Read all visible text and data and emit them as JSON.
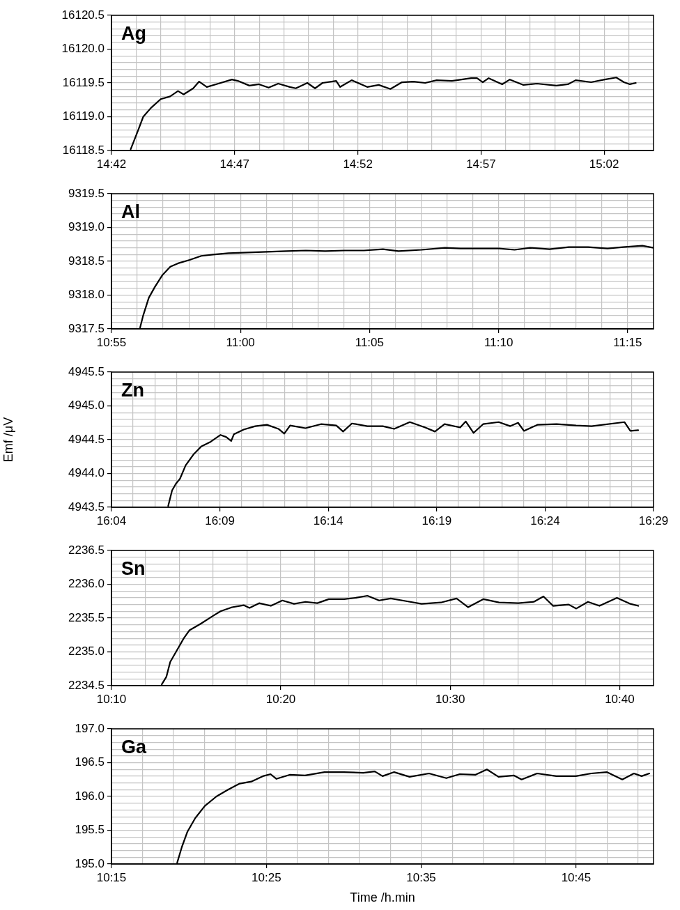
{
  "chart_data": [
    {
      "type": "line",
      "title": "Ag",
      "grid": true,
      "x": [
        14.713,
        14.7175,
        14.7215,
        14.7267,
        14.7333,
        14.7397,
        14.745,
        14.7488,
        14.7553,
        14.7593,
        14.7645,
        14.7723,
        14.7815,
        14.7855,
        14.7933,
        14.7998,
        14.8063,
        14.8128,
        14.8207,
        14.8247,
        14.8325,
        14.8377,
        14.8428,
        14.852,
        14.8547,
        14.8625,
        14.873,
        14.8808,
        14.8887,
        14.8965,
        14.9042,
        14.9122,
        14.92,
        14.9303,
        14.9433,
        14.9473,
        14.9512,
        14.9552,
        14.9643,
        14.9695,
        14.9787,
        14.9878,
        15.001,
        15.0088,
        15.014,
        15.0245,
        15.0337,
        15.0415,
        15.0467,
        15.0507,
        15.0547
      ],
      "series": [
        {
          "color": "#000000",
          "values": [
            16118.52,
            16118.77,
            16119.0,
            16119.13,
            16119.26,
            16119.3,
            16119.38,
            16119.33,
            16119.42,
            16119.52,
            16119.44,
            16119.49,
            16119.55,
            16119.53,
            16119.46,
            16119.48,
            16119.43,
            16119.49,
            16119.44,
            16119.42,
            16119.5,
            16119.42,
            16119.5,
            16119.53,
            16119.44,
            16119.54,
            16119.44,
            16119.47,
            16119.41,
            16119.51,
            16119.52,
            16119.5,
            16119.54,
            16119.53,
            16119.57,
            16119.57,
            16119.51,
            16119.57,
            16119.48,
            16119.55,
            16119.47,
            16119.49,
            16119.46,
            16119.48,
            16119.54,
            16119.51,
            16119.55,
            16119.58,
            16119.51,
            16119.48,
            16119.5
          ]
        }
      ],
      "xlim": [
        14.7,
        15.0667
      ],
      "xticks": [
        {
          "value": 14.7,
          "label": "14:42"
        },
        {
          "value": 14.7167,
          "label": null
        },
        {
          "value": 14.7333,
          "label": null
        },
        {
          "value": 14.75,
          "label": null
        },
        {
          "value": 14.7667,
          "label": null
        },
        {
          "value": 14.7833,
          "label": "14:47"
        },
        {
          "value": 14.8,
          "label": null
        },
        {
          "value": 14.8167,
          "label": null
        },
        {
          "value": 14.8333,
          "label": null
        },
        {
          "value": 14.85,
          "label": null
        },
        {
          "value": 14.8667,
          "label": "14:52"
        },
        {
          "value": 14.8833,
          "label": null
        },
        {
          "value": 14.9,
          "label": null
        },
        {
          "value": 14.9167,
          "label": null
        },
        {
          "value": 14.9333,
          "label": null
        },
        {
          "value": 14.95,
          "label": "14:57"
        },
        {
          "value": 14.9667,
          "label": null
        },
        {
          "value": 14.9833,
          "label": null
        },
        {
          "value": 15,
          "label": null
        },
        {
          "value": 15.0167,
          "label": null
        },
        {
          "value": 15.0333,
          "label": "15:02"
        },
        {
          "value": 15.05,
          "label": null
        }
      ],
      "ylim": [
        16118.5,
        16120.5
      ],
      "yticks": [
        16118.5,
        {
          "value": 16118.6,
          "label": null
        },
        {
          "value": 16118.7,
          "label": null
        },
        {
          "value": 16118.8,
          "label": null
        },
        {
          "value": 16118.9,
          "label": null
        },
        {
          "value": 16119,
          "label": "16119.0"
        },
        {
          "value": 16119.1,
          "label": null
        },
        {
          "value": 16119.2,
          "label": null
        },
        {
          "value": 16119.3,
          "label": null
        },
        {
          "value": 16119.4,
          "label": null
        },
        16119.5,
        {
          "value": 16119.6,
          "label": null
        },
        {
          "value": 16119.7,
          "label": null
        },
        {
          "value": 16119.8,
          "label": null
        },
        {
          "value": 16119.9,
          "label": null
        },
        {
          "value": 16120,
          "label": "16120.0"
        },
        {
          "value": 16120.1,
          "label": null
        },
        {
          "value": 16120.2,
          "label": null
        },
        {
          "value": 16120.3,
          "label": null
        },
        {
          "value": 16120.4,
          "label": null
        },
        16120.5
      ]
    },
    {
      "type": "line",
      "title": "Al",
      "grid": true,
      "x": [
        10.9352,
        10.9372,
        10.9408,
        10.9447,
        10.9497,
        10.9547,
        10.9597,
        10.9672,
        10.9747,
        10.9822,
        10.9922,
        11.0047,
        11.0172,
        11.0297,
        11.0422,
        11.0547,
        11.0672,
        11.0797,
        11.092,
        11.102,
        11.117,
        11.132,
        11.142,
        11.1545,
        11.167,
        11.177,
        11.187,
        11.1995,
        11.212,
        11.2245,
        11.237,
        11.247,
        11.2595,
        11.2667
      ],
      "series": [
        {
          "color": "#000000",
          "values": [
            9317.52,
            9317.7,
            9317.96,
            9318.12,
            9318.3,
            9318.42,
            9318.47,
            9318.52,
            9318.58,
            9318.6,
            9318.62,
            9318.63,
            9318.64,
            9318.65,
            9318.66,
            9318.65,
            9318.66,
            9318.66,
            9318.68,
            9318.65,
            9318.67,
            9318.7,
            9318.69,
            9318.69,
            9318.69,
            9318.67,
            9318.7,
            9318.68,
            9318.71,
            9318.71,
            9318.69,
            9318.71,
            9318.73,
            9318.7
          ]
        }
      ],
      "xlim": [
        10.9167,
        11.2667
      ],
      "xticks": [
        {
          "value": 10.9167,
          "label": "10:55"
        },
        {
          "value": 10.9333,
          "label": null
        },
        {
          "value": 10.95,
          "label": null
        },
        {
          "value": 10.9667,
          "label": null
        },
        {
          "value": 10.9833,
          "label": null
        },
        {
          "value": 11,
          "label": "11:00"
        },
        {
          "value": 11.0167,
          "label": null
        },
        {
          "value": 11.0333,
          "label": null
        },
        {
          "value": 11.05,
          "label": null
        },
        {
          "value": 11.0667,
          "label": null
        },
        {
          "value": 11.0833,
          "label": "11:05"
        },
        {
          "value": 11.1,
          "label": null
        },
        {
          "value": 11.1167,
          "label": null
        },
        {
          "value": 11.1333,
          "label": null
        },
        {
          "value": 11.15,
          "label": null
        },
        {
          "value": 11.1667,
          "label": "11:10"
        },
        {
          "value": 11.1833,
          "label": null
        },
        {
          "value": 11.2,
          "label": null
        },
        {
          "value": 11.2167,
          "label": null
        },
        {
          "value": 11.2333,
          "label": null
        },
        {
          "value": 11.25,
          "label": "11:15"
        }
      ],
      "ylim": [
        9317.5,
        9319.5
      ],
      "yticks": [
        9317.5,
        {
          "value": 9317.6,
          "label": null
        },
        {
          "value": 9317.7,
          "label": null
        },
        {
          "value": 9317.8,
          "label": null
        },
        {
          "value": 9317.9,
          "label": null
        },
        {
          "value": 9318,
          "label": "9318.0"
        },
        {
          "value": 9318.1,
          "label": null
        },
        {
          "value": 9318.2,
          "label": null
        },
        {
          "value": 9318.3,
          "label": null
        },
        {
          "value": 9318.4,
          "label": null
        },
        9318.5,
        {
          "value": 9318.6,
          "label": null
        },
        {
          "value": 9318.7,
          "label": null
        },
        {
          "value": 9318.8,
          "label": null
        },
        {
          "value": 9318.9,
          "label": null
        },
        {
          "value": 9319,
          "label": "9319.0"
        },
        {
          "value": 9319.1,
          "label": null
        },
        {
          "value": 9319.2,
          "label": null
        },
        {
          "value": 9319.3,
          "label": null
        },
        {
          "value": 9319.4,
          "label": null
        },
        9319.5
      ]
    },
    {
      "type": "line",
      "title": "Zn",
      "ylabel": "Emf /μV",
      "grid": true,
      "x": [
        16.1103,
        16.1133,
        16.1163,
        16.1193,
        16.1237,
        16.1297,
        16.1357,
        16.143,
        16.1505,
        16.1548,
        16.1587,
        16.1608,
        16.1683,
        16.1772,
        16.1862,
        16.195,
        16.1995,
        16.204,
        16.2158,
        16.2277,
        16.2395,
        16.2447,
        16.2515,
        16.2633,
        16.2752,
        16.284,
        16.296,
        16.3078,
        16.3153,
        16.3227,
        16.3347,
        16.339,
        16.345,
        16.3523,
        16.3643,
        16.3732,
        16.3792,
        16.3837,
        16.394,
        16.4088,
        16.4238,
        16.4357,
        16.461,
        16.4655,
        16.4715
      ],
      "series": [
        {
          "color": "#000000",
          "values": [
            4943.52,
            4943.75,
            4943.85,
            4943.92,
            4944.12,
            4944.28,
            4944.4,
            4944.47,
            4944.57,
            4944.54,
            4944.48,
            4944.58,
            4944.65,
            4944.7,
            4944.72,
            4944.66,
            4944.59,
            4944.71,
            4944.67,
            4944.73,
            4944.71,
            4944.62,
            4944.74,
            4944.7,
            4944.7,
            4944.66,
            4944.76,
            4944.68,
            4944.62,
            4944.73,
            4944.68,
            4944.77,
            4944.6,
            4944.73,
            4944.76,
            4944.7,
            4944.75,
            4944.63,
            4944.72,
            4944.73,
            4944.71,
            4944.7,
            4944.76,
            4944.63,
            4944.64
          ]
        }
      ],
      "xlim": [
        16.0667,
        16.4833
      ],
      "xticks": [
        {
          "value": 16.0667,
          "label": "16:04"
        },
        {
          "value": 16.0833,
          "label": null
        },
        {
          "value": 16.1,
          "label": null
        },
        {
          "value": 16.1167,
          "label": null
        },
        {
          "value": 16.1333,
          "label": null
        },
        {
          "value": 16.15,
          "label": "16:09"
        },
        {
          "value": 16.1667,
          "label": null
        },
        {
          "value": 16.1833,
          "label": null
        },
        {
          "value": 16.2,
          "label": null
        },
        {
          "value": 16.2167,
          "label": null
        },
        {
          "value": 16.2333,
          "label": "16:14"
        },
        {
          "value": 16.25,
          "label": null
        },
        {
          "value": 16.2667,
          "label": null
        },
        {
          "value": 16.2833,
          "label": null
        },
        {
          "value": 16.3,
          "label": null
        },
        {
          "value": 16.3167,
          "label": "16:19"
        },
        {
          "value": 16.3333,
          "label": null
        },
        {
          "value": 16.35,
          "label": null
        },
        {
          "value": 16.3667,
          "label": null
        },
        {
          "value": 16.3833,
          "label": null
        },
        {
          "value": 16.4,
          "label": "16:24"
        },
        {
          "value": 16.4167,
          "label": null
        },
        {
          "value": 16.4333,
          "label": null
        },
        {
          "value": 16.45,
          "label": null
        },
        {
          "value": 16.4667,
          "label": null
        },
        {
          "value": 16.4833,
          "label": "16:29"
        }
      ],
      "ylim": [
        4943.5,
        4945.5
      ],
      "yticks": [
        4943.5,
        {
          "value": 4943.6,
          "label": null
        },
        {
          "value": 4943.7,
          "label": null
        },
        {
          "value": 4943.8,
          "label": null
        },
        {
          "value": 4943.9,
          "label": null
        },
        {
          "value": 4944,
          "label": "4944.0"
        },
        {
          "value": 4944.1,
          "label": null
        },
        {
          "value": 4944.2,
          "label": null
        },
        {
          "value": 4944.3,
          "label": null
        },
        {
          "value": 4944.4,
          "label": null
        },
        4944.5,
        {
          "value": 4944.6,
          "label": null
        },
        {
          "value": 4944.7,
          "label": null
        },
        {
          "value": 4944.8,
          "label": null
        },
        {
          "value": 4944.9,
          "label": null
        },
        {
          "value": 4945,
          "label": "4945.0"
        },
        {
          "value": 4945.1,
          "label": null
        },
        {
          "value": 4945.2,
          "label": null
        },
        {
          "value": 4945.3,
          "label": null
        },
        {
          "value": 4945.4,
          "label": null
        },
        4945.5
      ]
    },
    {
      "type": "line",
      "title": "Sn",
      "grid": true,
      "x": [
        10.2162,
        10.2207,
        10.2245,
        10.2302,
        10.2378,
        10.2435,
        10.255,
        10.2663,
        10.274,
        10.2853,
        10.2968,
        10.3025,
        10.312,
        10.3235,
        10.3348,
        10.3463,
        10.3577,
        10.3692,
        10.3805,
        10.3957,
        10.4072,
        10.4185,
        10.43,
        10.4415,
        10.4567,
        10.4718,
        10.4908,
        10.5062,
        10.5175,
        10.5327,
        10.548,
        10.567,
        10.5822,
        10.5917,
        10.6012,
        10.6165,
        10.624,
        10.6355,
        10.6468,
        10.664,
        10.6773,
        10.685
      ],
      "series": [
        {
          "color": "#000000",
          "values": [
            2234.52,
            2234.63,
            2234.85,
            2235.0,
            2235.2,
            2235.32,
            2235.42,
            2235.53,
            2235.6,
            2235.66,
            2235.69,
            2235.65,
            2235.72,
            2235.68,
            2235.76,
            2235.71,
            2235.74,
            2235.72,
            2235.78,
            2235.78,
            2235.8,
            2235.83,
            2235.76,
            2235.79,
            2235.75,
            2235.71,
            2235.73,
            2235.79,
            2235.66,
            2235.78,
            2235.73,
            2235.72,
            2235.74,
            2235.82,
            2235.68,
            2235.7,
            2235.64,
            2235.74,
            2235.68,
            2235.8,
            2235.71,
            2235.68
          ]
        }
      ],
      "xlim": [
        10.1667,
        10.7
      ],
      "xticks": [
        {
          "value": 10.1667,
          "label": "10:10"
        },
        {
          "value": 10.2,
          "label": null
        },
        {
          "value": 10.2333,
          "label": null
        },
        {
          "value": 10.2667,
          "label": null
        },
        {
          "value": 10.3,
          "label": null
        },
        {
          "value": 10.3333,
          "label": "10:20"
        },
        {
          "value": 10.3667,
          "label": null
        },
        {
          "value": 10.4,
          "label": null
        },
        {
          "value": 10.4333,
          "label": null
        },
        {
          "value": 10.4667,
          "label": null
        },
        {
          "value": 10.5,
          "label": "10:30"
        },
        {
          "value": 10.5333,
          "label": null
        },
        {
          "value": 10.5667,
          "label": null
        },
        {
          "value": 10.6,
          "label": null
        },
        {
          "value": 10.6333,
          "label": null
        },
        {
          "value": 10.6667,
          "label": "10:40"
        }
      ],
      "ylim": [
        2234.5,
        2236.5
      ],
      "yticks": [
        2234.5,
        {
          "value": 2234.6,
          "label": null
        },
        {
          "value": 2234.7,
          "label": null
        },
        {
          "value": 2234.8,
          "label": null
        },
        {
          "value": 2234.9,
          "label": null
        },
        {
          "value": 2235,
          "label": "2235.0"
        },
        {
          "value": 2235.1,
          "label": null
        },
        {
          "value": 2235.2,
          "label": null
        },
        {
          "value": 2235.3,
          "label": null
        },
        {
          "value": 2235.4,
          "label": null
        },
        2235.5,
        {
          "value": 2235.6,
          "label": null
        },
        {
          "value": 2235.7,
          "label": null
        },
        {
          "value": 2235.8,
          "label": null
        },
        {
          "value": 2235.9,
          "label": null
        },
        {
          "value": 2236,
          "label": "2236.0"
        },
        {
          "value": 2236.1,
          "label": null
        },
        {
          "value": 2236.2,
          "label": null
        },
        {
          "value": 2236.3,
          "label": null
        },
        {
          "value": 2236.4,
          "label": null
        },
        2236.5
      ]
    },
    {
      "type": "line",
      "title": "Ga",
      "xlabel": "Time /h.min",
      "grid": true,
      "x": [
        10.3207,
        10.3257,
        10.3318,
        10.3402,
        10.3505,
        10.363,
        10.3755,
        10.388,
        10.4005,
        10.413,
        10.4212,
        10.4275,
        10.4417,
        10.4583,
        10.4792,
        10.5,
        10.521,
        10.5333,
        10.5417,
        10.5542,
        10.5708,
        10.5917,
        10.6103,
        10.6248,
        10.6415,
        10.654,
        10.6665,
        10.6832,
        10.6913,
        10.708,
        10.7288,
        10.7497,
        10.7663,
        10.783,
        10.7997,
        10.8122,
        10.8205,
        10.8288
      ],
      "series": [
        {
          "color": "#000000",
          "values": [
            195.02,
            195.25,
            195.48,
            195.68,
            195.86,
            196.0,
            196.1,
            196.19,
            196.22,
            196.3,
            196.33,
            196.26,
            196.32,
            196.31,
            196.36,
            196.36,
            196.35,
            196.37,
            196.3,
            196.36,
            196.29,
            196.34,
            196.27,
            196.33,
            196.32,
            196.4,
            196.29,
            196.31,
            196.25,
            196.34,
            196.3,
            196.3,
            196.34,
            196.36,
            196.25,
            196.34,
            196.3,
            196.34
          ]
        }
      ],
      "xlim": [
        10.25,
        10.8333
      ],
      "xticks": [
        {
          "value": 10.25,
          "label": "10:15"
        },
        {
          "value": 10.2833,
          "label": null
        },
        {
          "value": 10.3167,
          "label": null
        },
        {
          "value": 10.35,
          "label": null
        },
        {
          "value": 10.3833,
          "label": null
        },
        {
          "value": 10.4167,
          "label": "10:25"
        },
        {
          "value": 10.45,
          "label": null
        },
        {
          "value": 10.4833,
          "label": null
        },
        {
          "value": 10.5167,
          "label": null
        },
        {
          "value": 10.55,
          "label": null
        },
        {
          "value": 10.5833,
          "label": "10:35"
        },
        {
          "value": 10.6167,
          "label": null
        },
        {
          "value": 10.65,
          "label": null
        },
        {
          "value": 10.6833,
          "label": null
        },
        {
          "value": 10.7167,
          "label": null
        },
        {
          "value": 10.75,
          "label": "10:45"
        },
        {
          "value": 10.7833,
          "label": null
        },
        {
          "value": 10.8167,
          "label": null
        }
      ],
      "ylim": [
        195,
        197
      ],
      "yticks": [
        {
          "value": 195,
          "label": "195.0"
        },
        {
          "value": 195.1,
          "label": null
        },
        {
          "value": 195.2,
          "label": null
        },
        {
          "value": 195.3,
          "label": null
        },
        {
          "value": 195.4,
          "label": null
        },
        195.5,
        {
          "value": 195.6,
          "label": null
        },
        {
          "value": 195.7,
          "label": null
        },
        {
          "value": 195.8,
          "label": null
        },
        {
          "value": 195.9,
          "label": null
        },
        {
          "value": 196,
          "label": "196.0"
        },
        {
          "value": 196.1,
          "label": null
        },
        {
          "value": 196.2,
          "label": null
        },
        {
          "value": 196.3,
          "label": null
        },
        {
          "value": 196.4,
          "label": null
        },
        196.5,
        {
          "value": 196.6,
          "label": null
        },
        {
          "value": 196.7,
          "label": null
        },
        {
          "value": 196.8,
          "label": null
        },
        {
          "value": 196.9,
          "label": null
        },
        {
          "value": 197,
          "label": "197.0"
        }
      ]
    }
  ]
}
